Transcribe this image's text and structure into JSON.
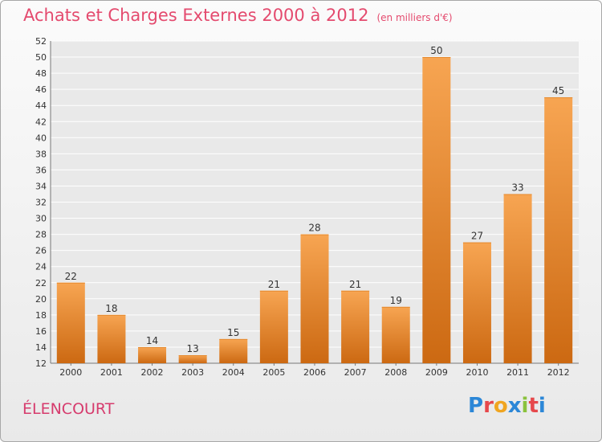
{
  "title": "Achats et Charges Externes 2000 à 2012",
  "subtitle": "(en milliers d'€)",
  "town": "ÉLENCOURT",
  "logo": {
    "letters": [
      "P",
      "r",
      "o",
      "x",
      "i",
      "t",
      "i"
    ],
    "colors": [
      "#2c87d7",
      "#e6484b",
      "#f0a520",
      "#2c87d7",
      "#8ac23d",
      "#e6484b",
      "#2c87d7"
    ]
  },
  "colors": {
    "bar_top": "#f7a552",
    "bar_bottom": "#cc6912",
    "title": "#e44a6e"
  },
  "chart_data": {
    "type": "bar",
    "categories": [
      "2000",
      "2001",
      "2002",
      "2003",
      "2004",
      "2005",
      "2006",
      "2007",
      "2008",
      "2009",
      "2010",
      "2011",
      "2012"
    ],
    "values": [
      22,
      18,
      14,
      13,
      15,
      21,
      28,
      21,
      19,
      50,
      27,
      33,
      45
    ],
    "ylim": [
      12,
      52
    ],
    "yticks": [
      12,
      14,
      16,
      18,
      20,
      22,
      24,
      26,
      28,
      30,
      32,
      34,
      36,
      38,
      40,
      42,
      44,
      46,
      48,
      50,
      52
    ],
    "grid": true,
    "legend": "none"
  }
}
